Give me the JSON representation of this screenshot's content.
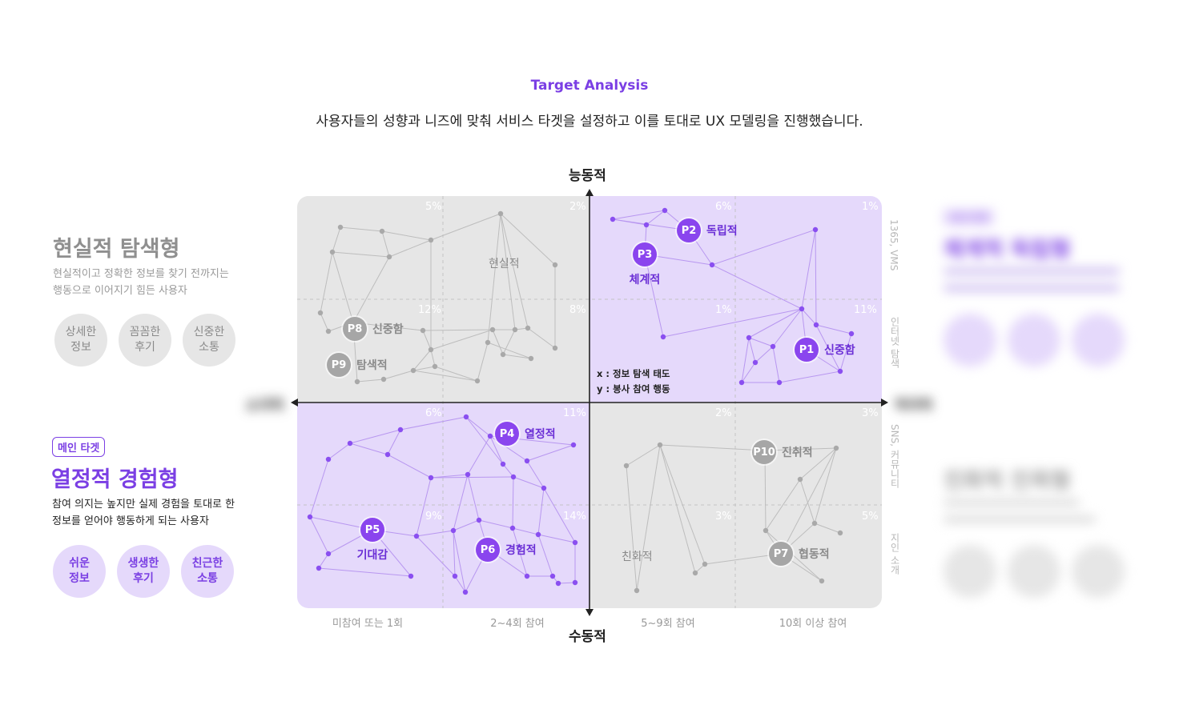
{
  "header": {
    "kicker": "Target Analysis",
    "description": "사용자들의 성향과 니즈에 맞춰 서비스 타겟을 설정하고 이를 토대로 UX 모델링을 진행했습니다."
  },
  "axes": {
    "top": "능동적",
    "bottom": "수동적",
    "left": "소극적",
    "right": "적극적",
    "x_categories": [
      "미참여 또는 1회",
      "2~4회 참여",
      "5~9회 참여",
      "10회 이상 참여"
    ],
    "y_categories": [
      "1365, VMS",
      "인터넷 탐색",
      "SNS, 커뮤니티",
      "지인 소개"
    ],
    "note_x": "x : 정보 탐색 태도",
    "note_y": "y : 봉사 참여 행동"
  },
  "colors": {
    "accent": "#7b3fe4",
    "gray_quad": "#e6e6e6",
    "purple_quad": "#e5d9fb"
  },
  "quadrants": {
    "top_left": {
      "label": "현실적",
      "percents": [
        "5%",
        "2%",
        "12%",
        "8%"
      ]
    },
    "top_right": {
      "percents": [
        "6%",
        "1%",
        "1%",
        "11%"
      ]
    },
    "bottom_left": {
      "percents": [
        "6%",
        "11%",
        "9%",
        "14%"
      ]
    },
    "bottom_right": {
      "label": "친화적",
      "percents": [
        "2%",
        "3%",
        "3%",
        "5%"
      ]
    }
  },
  "personas": [
    {
      "id": "P1",
      "label": "신중함",
      "active": true
    },
    {
      "id": "P2",
      "label": "독립적",
      "active": true
    },
    {
      "id": "P3",
      "label": "체계적",
      "active": true
    },
    {
      "id": "P4",
      "label": "열정적",
      "active": true
    },
    {
      "id": "P5",
      "label": "기대감",
      "active": true
    },
    {
      "id": "P6",
      "label": "경험적",
      "active": true
    },
    {
      "id": "P7",
      "label": "협동적",
      "active": false
    },
    {
      "id": "P8",
      "label": "신중함",
      "active": false
    },
    {
      "id": "P9",
      "label": "탐색적",
      "active": false
    },
    {
      "id": "P10",
      "label": "진취적",
      "active": false
    }
  ],
  "left_panel": {
    "realistic": {
      "title": "현실적 탐색형",
      "desc": "현실적이고 정확한 정보를 찾기 전까지는\n행동으로 이어지기 힘든 사용자",
      "bubbles": [
        "상세한\n정보",
        "꼼꼼한\n후기",
        "신중한\n소통"
      ]
    },
    "passionate": {
      "badge": "메인 타겟",
      "title": "열정적 경험형",
      "desc": "참여 의지는 높지만 실제 경험을 토대로 한\n정보를 얻어야 행동하게 되는 사용자",
      "bubbles": [
        "쉬운\n정보",
        "생생한\n후기",
        "친근한\n소통"
      ]
    }
  },
  "right_panel": {
    "systematic": {
      "badge": "서브 타겟",
      "title": "체계적 독립형"
    },
    "friendly": {
      "title": "친화적 친목형"
    }
  }
}
